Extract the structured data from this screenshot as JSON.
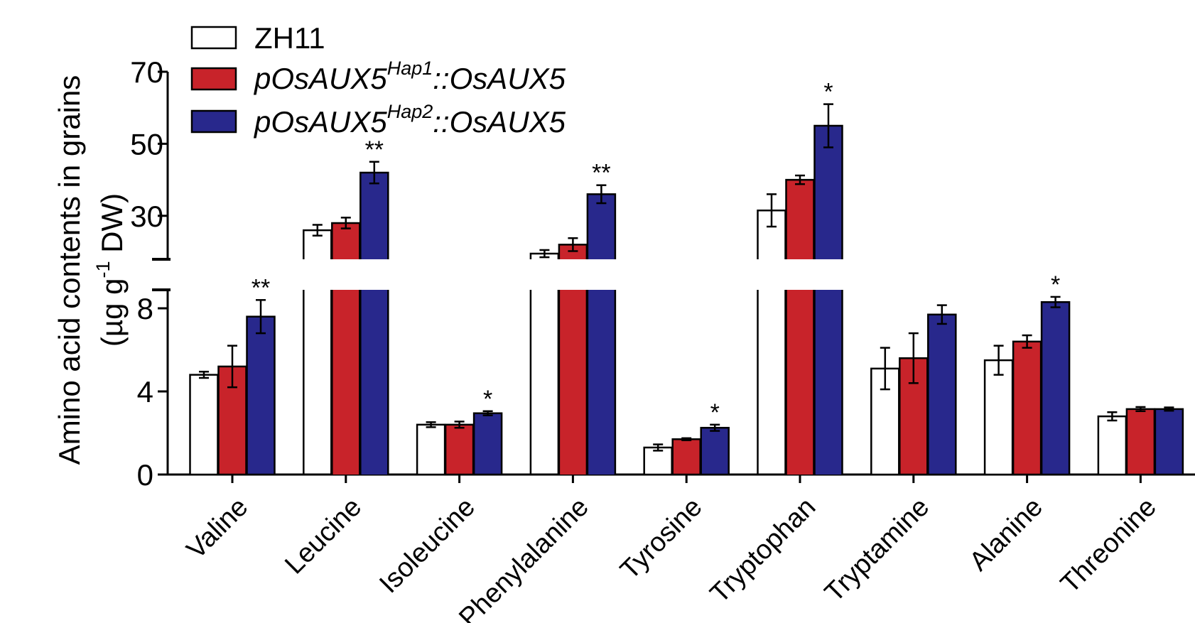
{
  "chart_data": {
    "type": "bar",
    "ylabel_line1": "Amino acid contents in grains",
    "ylabel_line2_prefix": "(µg g",
    "ylabel_line2_sup": "-1",
    "ylabel_line2_suffix": " DW)",
    "axis_break": true,
    "lower_segment": {
      "ylim": [
        0,
        9
      ],
      "ticks": [
        "0",
        "4",
        "8"
      ],
      "tick_values": [
        0,
        4,
        8
      ]
    },
    "upper_segment": {
      "ylim": [
        18,
        70
      ],
      "ticks": [
        "30",
        "50",
        "70"
      ],
      "tick_values": [
        30,
        50,
        70
      ]
    },
    "categories": [
      "Valine",
      "Leucine",
      "Isoleucine",
      "Phenylalanine",
      "Tyrosine",
      "Tryptophan",
      "Tryptamine",
      "Alanine",
      "Threonine"
    ],
    "series": [
      {
        "name": "ZH11",
        "values": [
          4.8,
          26.0,
          2.4,
          19.5,
          1.3,
          31.5,
          5.1,
          5.5,
          2.8
        ],
        "errors": [
          0.15,
          1.5,
          0.12,
          1.0,
          0.15,
          4.5,
          1.0,
          0.7,
          0.2
        ],
        "significance": [
          "",
          "",
          "",
          "",
          "",
          "",
          "",
          "",
          ""
        ]
      },
      {
        "name_prefix": "pOsAUX5",
        "name_sup": "Hap1",
        "name_suffix": "::OsAUX5",
        "values": [
          5.2,
          28.0,
          2.4,
          22.0,
          1.7,
          40.0,
          5.6,
          6.4,
          3.15
        ],
        "errors": [
          1.0,
          1.5,
          0.15,
          1.8,
          0.05,
          1.2,
          1.2,
          0.3,
          0.1
        ],
        "significance": [
          "",
          "",
          "",
          "",
          "",
          "",
          "",
          "",
          ""
        ]
      },
      {
        "name_prefix": "pOsAUX5",
        "name_sup": "Hap2",
        "name_suffix": "::OsAUX5",
        "values": [
          7.6,
          42.0,
          2.95,
          36.0,
          2.25,
          55.0,
          7.7,
          8.3,
          3.15
        ],
        "errors": [
          0.8,
          3.0,
          0.1,
          2.5,
          0.15,
          6.0,
          0.45,
          0.25,
          0.08
        ],
        "significance": [
          "**",
          "**",
          "*",
          "**",
          "*",
          "*",
          "",
          "*",
          ""
        ]
      }
    ]
  },
  "colors": {
    "zh11_fill": "#ffffff",
    "hap1_fill": "#c8232a",
    "hap2_fill": "#28288c",
    "stroke": "#000000"
  }
}
